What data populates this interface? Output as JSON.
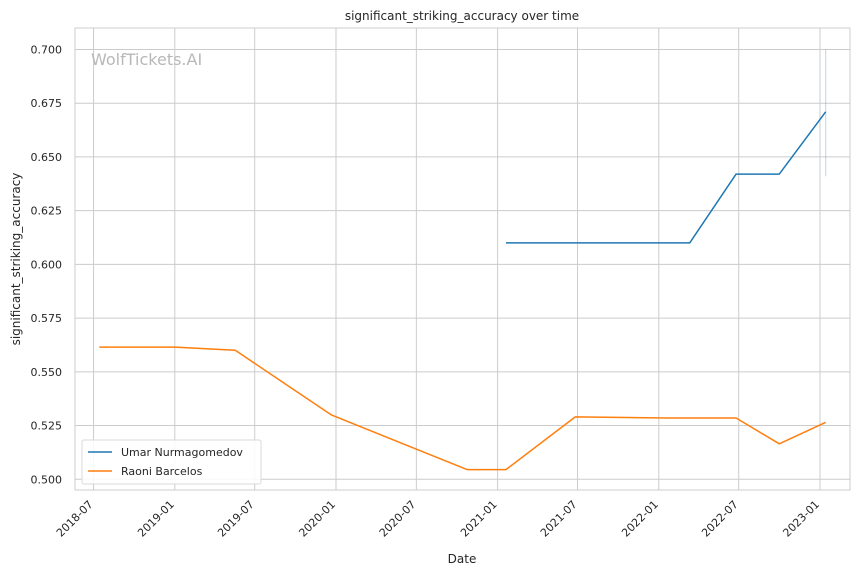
{
  "chart_data": {
    "type": "line",
    "title": "significant_striking_accuracy over time",
    "xlabel": "Date",
    "ylabel": "significant_striking_accuracy",
    "watermark": "WolfTickets.AI",
    "x_ticks": [
      "2018-07",
      "2019-01",
      "2019-07",
      "2020-01",
      "2020-07",
      "2021-01",
      "2021-07",
      "2022-01",
      "2022-07",
      "2023-01"
    ],
    "y_ticks": [
      "0.500",
      "0.525",
      "0.550",
      "0.575",
      "0.600",
      "0.625",
      "0.650",
      "0.675",
      "0.700"
    ],
    "xlim": [
      "2018-05-20",
      "2023-03-10"
    ],
    "ylim": [
      0.495,
      0.71
    ],
    "grid": true,
    "legend_position": "lower-left",
    "series": [
      {
        "name": "Umar Nurmagomedov",
        "color": "#1f77b4",
        "points": [
          {
            "x": "2021-01-20",
            "y": 0.61
          },
          {
            "x": "2022-03-12",
            "y": 0.61
          },
          {
            "x": "2022-06-25",
            "y": 0.642
          },
          {
            "x": "2022-10-01",
            "y": 0.642
          },
          {
            "x": "2023-01-14",
            "y": 0.671
          }
        ],
        "error_band": {
          "x": "2023-01-14",
          "low": 0.641,
          "high": 0.7
        }
      },
      {
        "name": "Raoni Barcelos",
        "color": "#ff7f0e",
        "points": [
          {
            "x": "2018-07-14",
            "y": 0.5615
          },
          {
            "x": "2019-01-01",
            "y": 0.5615
          },
          {
            "x": "2019-05-18",
            "y": 0.56
          },
          {
            "x": "2019-12-21",
            "y": 0.53
          },
          {
            "x": "2020-10-24",
            "y": 0.5045
          },
          {
            "x": "2021-01-20",
            "y": 0.5045
          },
          {
            "x": "2021-06-26",
            "y": 0.529
          },
          {
            "x": "2022-01-22",
            "y": 0.5285
          },
          {
            "x": "2022-06-25",
            "y": 0.5285
          },
          {
            "x": "2022-10-01",
            "y": 0.5165
          },
          {
            "x": "2023-01-14",
            "y": 0.5265
          }
        ]
      }
    ]
  }
}
